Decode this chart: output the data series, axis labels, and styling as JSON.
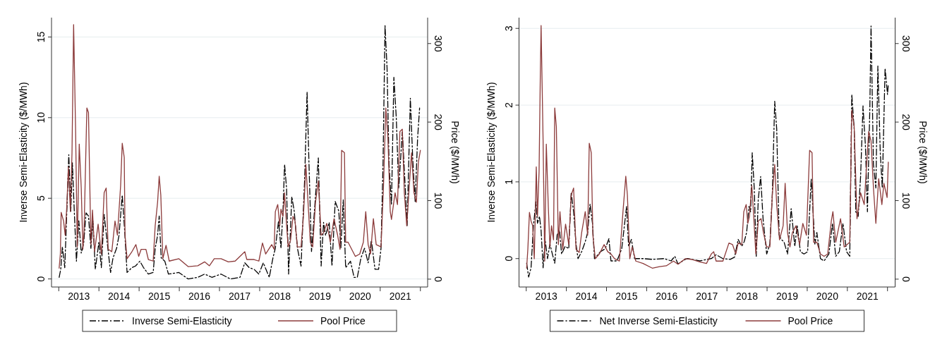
{
  "chart_data": [
    {
      "type": "line",
      "ylabel": "Inverse Semi-Elasticity ($/MWh)",
      "y2label": "Price ($/MWh)",
      "xlim": [
        2012.82,
        2022.18
      ],
      "xticks": [
        {
          "value": 2013,
          "label": null
        },
        {
          "value": 2013.5,
          "label": "2013"
        },
        {
          "value": 2014,
          "label": null
        },
        {
          "value": 2014.5,
          "label": "2014"
        },
        {
          "value": 2015,
          "label": null
        },
        {
          "value": 2015.5,
          "label": "2015"
        },
        {
          "value": 2016,
          "label": null
        },
        {
          "value": 2016.5,
          "label": "2016"
        },
        {
          "value": 2017,
          "label": null
        },
        {
          "value": 2017.5,
          "label": "2017"
        },
        {
          "value": 2018,
          "label": null
        },
        {
          "value": 2018.5,
          "label": "2018"
        },
        {
          "value": 2019,
          "label": null
        },
        {
          "value": 2019.5,
          "label": "2019"
        },
        {
          "value": 2020,
          "label": null
        },
        {
          "value": 2020.5,
          "label": "2020"
        },
        {
          "value": 2021,
          "label": null
        },
        {
          "value": 2021.5,
          "label": "2021"
        },
        {
          "value": 2022,
          "label": null
        }
      ],
      "ylim": [
        -0.5,
        16.2
      ],
      "yticks": [
        0,
        5,
        10,
        15
      ],
      "y2lim": [
        -10,
        333
      ],
      "y2ticks": [
        0,
        100,
        200,
        300
      ],
      "grid": "y",
      "legend": "bottom",
      "series": [
        {
          "name": "Inverse Semi-Elasticity",
          "color": "#000000",
          "line_style": "dashed",
          "x": [
            2013.01,
            2013.05,
            2013.09,
            2013.15,
            2013.21,
            2013.25,
            2013.3,
            2013.34,
            2013.37,
            2013.44,
            2013.5,
            2013.56,
            2013.62,
            2013.68,
            2013.74,
            2013.8,
            2013.85,
            2013.91,
            2014.0,
            2014.06,
            2014.13,
            2014.2,
            2014.29,
            2014.35,
            2014.44,
            2014.5,
            2014.58,
            2014.64,
            2014.7,
            2014.82,
            2014.91,
            2015.02,
            2015.11,
            2015.23,
            2015.35,
            2015.4,
            2015.46,
            2015.5,
            2015.55,
            2015.64,
            2015.73,
            2015.99,
            2016.22,
            2016.46,
            2016.63,
            2016.81,
            2017.04,
            2017.27,
            2017.51,
            2017.63,
            2017.74,
            2017.86,
            2017.98,
            2018.09,
            2018.24,
            2018.33,
            2018.39,
            2018.47,
            2018.53,
            2018.58,
            2018.62,
            2018.67,
            2018.72,
            2018.8,
            2018.86,
            2018.94,
            2019.03,
            2019.12,
            2019.18,
            2019.22,
            2019.29,
            2019.38,
            2019.46,
            2019.53,
            2019.59,
            2019.64,
            2019.73,
            2019.8,
            2019.88,
            2019.97,
            2020.02,
            2020.08,
            2020.14,
            2020.26,
            2020.35,
            2020.43,
            2020.52,
            2020.61,
            2020.7,
            2020.78,
            2020.87,
            2020.96,
            2021.02,
            2021.07,
            2021.12,
            2021.17,
            2021.22,
            2021.28,
            2021.34,
            2021.4,
            2021.46,
            2021.55,
            2021.6,
            2021.67,
            2021.75,
            2021.81,
            2021.87,
            2021.93,
            2021.98
          ],
          "values": [
            0.1,
            0.6,
            2.0,
            0.7,
            4.8,
            7.7,
            4.2,
            7.2,
            5.2,
            1.1,
            3.6,
            1.6,
            2.2,
            4.1,
            3.9,
            1.9,
            3.6,
            0.6,
            2.3,
            0.7,
            4.0,
            2.4,
            0.4,
            1.3,
            1.9,
            2.7,
            5.2,
            3.0,
            0.4,
            0.7,
            0.8,
            1.1,
            0.7,
            0.3,
            0.4,
            1.9,
            2.7,
            3.9,
            1.3,
            1.1,
            0.3,
            0.4,
            0.0,
            0.1,
            0.3,
            0.1,
            0.3,
            0.0,
            0.1,
            1.0,
            0.7,
            0.6,
            0.3,
            1.0,
            0.1,
            1.3,
            1.9,
            3.6,
            1.9,
            4.2,
            7.1,
            5.6,
            0.3,
            5.1,
            4.2,
            1.9,
            0.8,
            6.2,
            11.6,
            7.8,
            1.7,
            4.8,
            7.5,
            0.8,
            3.5,
            2.7,
            3.5,
            0.8,
            4.8,
            4.2,
            1.9,
            4.9,
            0.7,
            1.1,
            0.1,
            0.1,
            1.3,
            1.9,
            1.0,
            2.4,
            0.6,
            0.6,
            1.9,
            7.1,
            15.7,
            13.1,
            7.1,
            4.6,
            12.5,
            10.0,
            5.6,
            9.1,
            6.8,
            3.3,
            11.2,
            7.4,
            4.8,
            8.7,
            10.6
          ]
        },
        {
          "name": "Pool Price",
          "color": "#8c3b3b",
          "line_style": "solid",
          "axis": "y2",
          "x": [
            2013.01,
            2013.04,
            2013.06,
            2013.12,
            2013.16,
            2013.2,
            2013.24,
            2013.29,
            2013.33,
            2013.37,
            2013.42,
            2013.46,
            2013.51,
            2013.56,
            2013.6,
            2013.63,
            2013.7,
            2013.74,
            2013.8,
            2013.84,
            2013.89,
            2013.98,
            2014.06,
            2014.13,
            2014.18,
            2014.23,
            2014.32,
            2014.4,
            2014.46,
            2014.54,
            2014.58,
            2014.63,
            2014.65,
            2014.7,
            2014.81,
            2014.92,
            2014.99,
            2015.05,
            2015.17,
            2015.23,
            2015.35,
            2015.4,
            2015.46,
            2015.5,
            2015.54,
            2015.59,
            2015.67,
            2015.75,
            2015.99,
            2016.22,
            2016.46,
            2016.63,
            2016.75,
            2016.87,
            2017.04,
            2017.22,
            2017.39,
            2017.57,
            2017.63,
            2017.68,
            2017.86,
            2017.98,
            2018.07,
            2018.15,
            2018.3,
            2018.36,
            2018.39,
            2018.45,
            2018.5,
            2018.53,
            2018.58,
            2018.62,
            2018.67,
            2018.71,
            2018.77,
            2018.83,
            2018.88,
            2018.94,
            2019.03,
            2019.09,
            2019.15,
            2019.21,
            2019.26,
            2019.32,
            2019.39,
            2019.46,
            2019.53,
            2019.59,
            2019.67,
            2019.76,
            2019.85,
            2019.94,
            2020.0,
            2020.04,
            2020.11,
            2020.14,
            2020.2,
            2020.29,
            2020.38,
            2020.49,
            2020.58,
            2020.64,
            2020.7,
            2020.76,
            2020.83,
            2020.9,
            2021.02,
            2021.08,
            2021.14,
            2021.19,
            2021.25,
            2021.28,
            2021.37,
            2021.43,
            2021.49,
            2021.55,
            2021.6,
            2021.66,
            2021.72,
            2021.78,
            2021.84,
            2021.9,
            2021.95,
            2022.0
          ],
          "values": [
            14,
            32,
            85,
            74,
            56,
            92,
            143,
            86,
            161,
            324,
            188,
            41,
            172,
            116,
            38,
            62,
            218,
            212,
            44,
            88,
            35,
            70,
            32,
            110,
            116,
            38,
            35,
            74,
            56,
            119,
            173,
            155,
            56,
            26,
            34,
            44,
            29,
            38,
            38,
            25,
            23,
            68,
            98,
            131,
            107,
            26,
            43,
            23,
            26,
            16,
            17,
            22,
            17,
            26,
            26,
            22,
            23,
            32,
            35,
            25,
            25,
            23,
            46,
            32,
            44,
            38,
            86,
            95,
            68,
            89,
            80,
            110,
            68,
            41,
            50,
            80,
            74,
            41,
            41,
            80,
            146,
            92,
            47,
            41,
            98,
            125,
            56,
            59,
            71,
            47,
            77,
            56,
            38,
            164,
            161,
            47,
            47,
            38,
            29,
            32,
            47,
            86,
            44,
            32,
            77,
            44,
            41,
            116,
            218,
            182,
            86,
            76,
            110,
            95,
            188,
            191,
            110,
            68,
            116,
            161,
            110,
            98,
            149,
            164
          ]
        }
      ]
    },
    {
      "type": "line",
      "ylabel": "Inverse Semi-Elasticity ($/MWh)",
      "y2label": "Price ($/MWh)",
      "xlim": [
        2012.82,
        2022.19
      ],
      "xticks": [
        {
          "value": 2013,
          "label": null
        },
        {
          "value": 2013.5,
          "label": "2013"
        },
        {
          "value": 2014,
          "label": null
        },
        {
          "value": 2014.5,
          "label": "2014"
        },
        {
          "value": 2015,
          "label": null
        },
        {
          "value": 2015.5,
          "label": "2015"
        },
        {
          "value": 2016,
          "label": null
        },
        {
          "value": 2016.5,
          "label": "2016"
        },
        {
          "value": 2017,
          "label": null
        },
        {
          "value": 2017.5,
          "label": "2017"
        },
        {
          "value": 2018,
          "label": null
        },
        {
          "value": 2018.5,
          "label": "2018"
        },
        {
          "value": 2019,
          "label": null
        },
        {
          "value": 2019.5,
          "label": "2019"
        },
        {
          "value": 2020,
          "label": null
        },
        {
          "value": 2020.5,
          "label": "2020"
        },
        {
          "value": 2021,
          "label": null
        },
        {
          "value": 2021.5,
          "label": "2021"
        },
        {
          "value": 2022,
          "label": null
        }
      ],
      "ylim": [
        -0.37,
        3.14
      ],
      "yticks": [
        0,
        1,
        2,
        3
      ],
      "y2lim": [
        -10,
        333
      ],
      "y2ticks": [
        0,
        100,
        200,
        300
      ],
      "grid": "y",
      "legend": "bottom",
      "series": [
        {
          "name": "Net Inverse Semi-Elasticity",
          "color": "#000000",
          "line_style": "dashed",
          "x": [
            2013.01,
            2013.06,
            2013.12,
            2013.18,
            2013.24,
            2013.28,
            2013.33,
            2013.37,
            2013.42,
            2013.47,
            2013.53,
            2013.59,
            2013.65,
            2013.71,
            2013.77,
            2013.83,
            2013.88,
            2013.97,
            2014.06,
            2014.12,
            2014.18,
            2014.24,
            2014.29,
            2014.38,
            2014.47,
            2014.53,
            2014.59,
            2014.65,
            2014.7,
            2014.85,
            2014.97,
            2015.06,
            2015.11,
            2015.26,
            2015.38,
            2015.5,
            2015.55,
            2015.62,
            2015.7,
            2015.91,
            2016.14,
            2016.43,
            2016.61,
            2016.7,
            2016.78,
            2016.96,
            2017.02,
            2017.32,
            2017.61,
            2017.73,
            2017.9,
            2018.08,
            2018.19,
            2018.28,
            2018.37,
            2018.43,
            2018.49,
            2018.55,
            2018.59,
            2018.63,
            2018.68,
            2018.73,
            2018.78,
            2018.84,
            2018.9,
            2018.99,
            2019.07,
            2019.13,
            2019.19,
            2019.24,
            2019.3,
            2019.35,
            2019.42,
            2019.51,
            2019.6,
            2019.69,
            2019.75,
            2019.83,
            2019.92,
            2020.01,
            2020.1,
            2020.19,
            2020.24,
            2020.33,
            2020.42,
            2020.54,
            2020.63,
            2020.71,
            2020.8,
            2020.89,
            2020.98,
            2021.06,
            2021.11,
            2021.17,
            2021.21,
            2021.27,
            2021.33,
            2021.39,
            2021.45,
            2021.5,
            2021.56,
            2021.59,
            2021.65,
            2021.71,
            2021.76,
            2021.82,
            2021.87,
            2021.94,
            2022.0,
            2022.02
          ],
          "values": [
            -0.06,
            -0.24,
            -0.12,
            0.43,
            0.74,
            0.46,
            0.55,
            0.37,
            -0.12,
            0.25,
            0.0,
            0.19,
            0.06,
            -0.06,
            0.31,
            0.37,
            0.06,
            0.16,
            0.13,
            0.86,
            0.61,
            0.19,
            0.0,
            0.09,
            0.22,
            0.34,
            0.71,
            0.46,
            0.0,
            0.09,
            0.13,
            0.26,
            -0.03,
            -0.03,
            0.13,
            0.68,
            0.16,
            0.25,
            0.0,
            0.0,
            -0.01,
            0.0,
            -0.03,
            0.03,
            -0.07,
            -0.01,
            0.0,
            -0.03,
            0.0,
            0.05,
            0.0,
            -0.01,
            0.02,
            0.25,
            0.16,
            0.22,
            0.34,
            0.68,
            0.61,
            1.38,
            0.92,
            0.03,
            0.77,
            1.07,
            0.52,
            0.06,
            0.19,
            0.83,
            2.05,
            1.69,
            0.31,
            0.25,
            0.22,
            0.06,
            0.65,
            0.16,
            0.43,
            0.09,
            0.06,
            0.09,
            1.04,
            0.19,
            0.34,
            0.0,
            -0.03,
            0.06,
            0.46,
            0.03,
            0.09,
            0.46,
            0.09,
            0.03,
            2.14,
            1.69,
            0.61,
            0.55,
            1.07,
            1.99,
            1.47,
            0.61,
            1.96,
            3.03,
            1.23,
            0.92,
            2.51,
            1.38,
            0.92,
            2.48,
            2.14,
            2.27
          ]
        },
        {
          "name": "Pool Price",
          "color": "#8c3b3b",
          "line_style": "solid",
          "axis": "y2",
          "x": [
            2013.01,
            2013.04,
            2013.08,
            2013.12,
            2013.16,
            2013.2,
            2013.23,
            2013.25,
            2013.28,
            2013.32,
            2013.35,
            2013.37,
            2013.42,
            2013.46,
            2013.5,
            2013.55,
            2013.59,
            2013.63,
            2013.68,
            2013.71,
            2013.75,
            2013.8,
            2013.84,
            2013.91,
            2013.98,
            2014.06,
            2014.12,
            2014.18,
            2014.24,
            2014.32,
            2014.38,
            2014.47,
            2014.53,
            2014.57,
            2014.62,
            2014.66,
            2014.72,
            2014.82,
            2014.94,
            2015.03,
            2015.11,
            2015.2,
            2015.32,
            2015.41,
            2015.48,
            2015.52,
            2015.58,
            2015.64,
            2015.73,
            2015.91,
            2016.14,
            2016.32,
            2016.49,
            2016.67,
            2016.78,
            2016.96,
            2017.14,
            2017.32,
            2017.49,
            2017.61,
            2017.67,
            2017.73,
            2017.9,
            2018.05,
            2018.14,
            2018.22,
            2018.28,
            2018.37,
            2018.42,
            2018.48,
            2018.52,
            2018.56,
            2018.62,
            2018.66,
            2018.72,
            2018.78,
            2018.85,
            2018.91,
            2018.99,
            2019.07,
            2019.13,
            2019.19,
            2019.24,
            2019.31,
            2019.4,
            2019.45,
            2019.51,
            2019.57,
            2019.63,
            2019.72,
            2019.81,
            2019.89,
            2019.98,
            2020.06,
            2020.12,
            2020.16,
            2020.24,
            2020.33,
            2020.42,
            2020.51,
            2020.6,
            2020.64,
            2020.71,
            2020.83,
            2020.92,
            2021.06,
            2021.11,
            2021.17,
            2021.24,
            2021.33,
            2021.42,
            2021.48,
            2021.53,
            2021.59,
            2021.65,
            2021.71,
            2021.78,
            2021.86,
            2021.91,
            2021.99,
            2022.02
          ],
          "values": [
            14,
            38,
            85,
            74,
            68,
            26,
            92,
            143,
            80,
            137,
            257,
            323,
            176,
            23,
            172,
            92,
            41,
            68,
            50,
            218,
            194,
            44,
            86,
            38,
            70,
            44,
            107,
            116,
            38,
            34,
            59,
            86,
            56,
            173,
            161,
            56,
            26,
            32,
            44,
            35,
            32,
            26,
            23,
            86,
            131,
            107,
            26,
            41,
            23,
            20,
            14,
            16,
            17,
            23,
            19,
            26,
            25,
            22,
            20,
            32,
            35,
            23,
            23,
            46,
            44,
            32,
            46,
            44,
            86,
            95,
            71,
            80,
            119,
            86,
            32,
            74,
            77,
            59,
            41,
            41,
            107,
            146,
            95,
            50,
            68,
            122,
            59,
            41,
            59,
            68,
            44,
            71,
            56,
            164,
            161,
            47,
            47,
            32,
            29,
            32,
            74,
            86,
            47,
            77,
            41,
            47,
            215,
            194,
            77,
            110,
            95,
            146,
            188,
            176,
            116,
            71,
            128,
            95,
            122,
            104,
            149
          ]
        }
      ]
    }
  ]
}
